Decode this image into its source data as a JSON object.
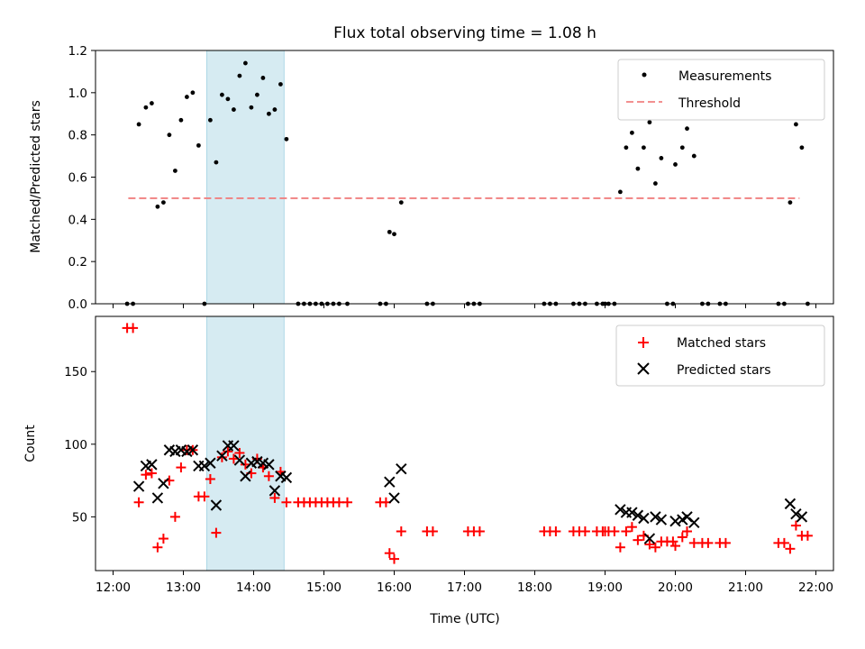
{
  "chart_data": [
    {
      "type": "scatter",
      "title": "Flux total observing time = 1.08 h",
      "xlabel": "",
      "ylabel": "Matched/Predicted stars",
      "xlim": [
        "11:45",
        "22:15"
      ],
      "ylim": [
        0,
        1.2
      ],
      "yticks": [
        "0.0",
        "0.2",
        "0.4",
        "0.6",
        "0.8",
        "1.0",
        "1.2"
      ],
      "highlight_span": [
        "13:20",
        "14:26"
      ],
      "legend": {
        "placement": "top-right",
        "entries": [
          "Measurements",
          "Threshold"
        ]
      },
      "colors": {
        "measurements": "#000000",
        "threshold": "#f08080",
        "span": "#add8e6"
      },
      "series": [
        {
          "name": "Measurements",
          "points": [
            [
              "12:12",
              0
            ],
            [
              "12:17",
              0
            ],
            [
              "12:22",
              0.85
            ],
            [
              "12:28",
              0.93
            ],
            [
              "12:33",
              0.95
            ],
            [
              "12:38",
              0.46
            ],
            [
              "12:43",
              0.48
            ],
            [
              "12:48",
              0.8
            ],
            [
              "12:53",
              0.63
            ],
            [
              "12:58",
              0.87
            ],
            [
              "13:03",
              0.98
            ],
            [
              "13:08",
              1.0
            ],
            [
              "13:13",
              0.75
            ],
            [
              "13:18",
              0
            ],
            [
              "13:23",
              0.87
            ],
            [
              "13:28",
              0.67
            ],
            [
              "13:33",
              0.99
            ],
            [
              "13:38",
              0.97
            ],
            [
              "13:43",
              0.92
            ],
            [
              "13:48",
              1.08
            ],
            [
              "13:53",
              1.14
            ],
            [
              "13:58",
              0.93
            ],
            [
              "14:03",
              0.99
            ],
            [
              "14:08",
              1.07
            ],
            [
              "14:13",
              0.9
            ],
            [
              "14:18",
              0.92
            ],
            [
              "14:23",
              1.04
            ],
            [
              "14:28",
              0.78
            ],
            [
              "14:38",
              0
            ],
            [
              "14:43",
              0
            ],
            [
              "14:48",
              0
            ],
            [
              "14:53",
              0
            ],
            [
              "14:58",
              0
            ],
            [
              "15:03",
              0
            ],
            [
              "15:08",
              0
            ],
            [
              "15:13",
              0
            ],
            [
              "15:20",
              0
            ],
            [
              "15:48",
              0
            ],
            [
              "15:53",
              0
            ],
            [
              "15:56",
              0.34
            ],
            [
              "16:00",
              0.33
            ],
            [
              "16:06",
              0.48
            ],
            [
              "16:28",
              0
            ],
            [
              "16:33",
              0
            ],
            [
              "17:03",
              0
            ],
            [
              "17:08",
              0
            ],
            [
              "17:13",
              0
            ],
            [
              "18:08",
              0
            ],
            [
              "18:13",
              0
            ],
            [
              "18:18",
              0
            ],
            [
              "18:33",
              0
            ],
            [
              "18:38",
              0
            ],
            [
              "18:43",
              0
            ],
            [
              "18:53",
              0
            ],
            [
              "18:58",
              0
            ],
            [
              "19:00",
              0
            ],
            [
              "19:03",
              0
            ],
            [
              "19:08",
              0
            ],
            [
              "19:13",
              0.53
            ],
            [
              "19:18",
              0.74
            ],
            [
              "19:23",
              0.81
            ],
            [
              "19:28",
              0.64
            ],
            [
              "19:33",
              0.74
            ],
            [
              "19:38",
              0.86
            ],
            [
              "19:43",
              0.57
            ],
            [
              "19:48",
              0.69
            ],
            [
              "19:53",
              0
            ],
            [
              "19:58",
              0
            ],
            [
              "20:00",
              0.66
            ],
            [
              "20:06",
              0.74
            ],
            [
              "20:10",
              0.83
            ],
            [
              "20:16",
              0.7
            ],
            [
              "20:23",
              0
            ],
            [
              "20:28",
              0
            ],
            [
              "20:38",
              0
            ],
            [
              "20:43",
              0
            ],
            [
              "21:28",
              0
            ],
            [
              "21:33",
              0
            ],
            [
              "21:38",
              0.48
            ],
            [
              "21:43",
              0.85
            ],
            [
              "21:48",
              0.74
            ],
            [
              "21:53",
              0
            ]
          ]
        },
        {
          "name": "Threshold",
          "line": [
            [
              "12:13",
              0.5
            ],
            [
              "21:46",
              0.5
            ]
          ]
        }
      ]
    },
    {
      "type": "scatter",
      "title": "",
      "xlabel": "Time (UTC)",
      "ylabel": "Count",
      "xlim": [
        "11:45",
        "22:15"
      ],
      "ylim": [
        13,
        188
      ],
      "yticks": [
        "50",
        "100",
        "150"
      ],
      "xticks": [
        "12:00",
        "13:00",
        "14:00",
        "15:00",
        "16:00",
        "17:00",
        "18:00",
        "19:00",
        "20:00",
        "21:00",
        "22:00"
      ],
      "highlight_span": [
        "13:20",
        "14:26"
      ],
      "legend": {
        "placement": "top-right",
        "entries": [
          "Matched stars",
          "Predicted stars"
        ]
      },
      "colors": {
        "matched": "#ff0000",
        "predicted": "#000000",
        "span": "#add8e6"
      },
      "series": [
        {
          "name": "Matched stars",
          "points": [
            [
              "12:12",
              180
            ],
            [
              "12:17",
              180
            ],
            [
              "12:22",
              60
            ],
            [
              "12:28",
              79
            ],
            [
              "12:33",
              80
            ],
            [
              "12:38",
              29
            ],
            [
              "12:43",
              35
            ],
            [
              "12:48",
              75
            ],
            [
              "12:53",
              50
            ],
            [
              "12:58",
              84
            ],
            [
              "13:03",
              96
            ],
            [
              "13:08",
              96
            ],
            [
              "13:13",
              64
            ],
            [
              "13:18",
              64
            ],
            [
              "13:23",
              76
            ],
            [
              "13:28",
              39
            ],
            [
              "13:33",
              91
            ],
            [
              "13:38",
              95
            ],
            [
              "13:43",
              90
            ],
            [
              "13:48",
              94
            ],
            [
              "13:53",
              86
            ],
            [
              "13:58",
              80
            ],
            [
              "14:03",
              90
            ],
            [
              "14:08",
              84
            ],
            [
              "14:13",
              78
            ],
            [
              "14:18",
              63
            ],
            [
              "14:23",
              81
            ],
            [
              "14:28",
              60
            ],
            [
              "14:38",
              60
            ],
            [
              "14:43",
              60
            ],
            [
              "14:48",
              60
            ],
            [
              "14:53",
              60
            ],
            [
              "14:58",
              60
            ],
            [
              "15:03",
              60
            ],
            [
              "15:08",
              60
            ],
            [
              "15:13",
              60
            ],
            [
              "15:20",
              60
            ],
            [
              "15:48",
              60
            ],
            [
              "15:53",
              60
            ],
            [
              "15:56",
              25
            ],
            [
              "16:00",
              21
            ],
            [
              "16:06",
              40
            ],
            [
              "16:28",
              40
            ],
            [
              "16:33",
              40
            ],
            [
              "17:03",
              40
            ],
            [
              "17:08",
              40
            ],
            [
              "17:13",
              40
            ],
            [
              "18:08",
              40
            ],
            [
              "18:13",
              40
            ],
            [
              "18:18",
              40
            ],
            [
              "18:33",
              40
            ],
            [
              "18:38",
              40
            ],
            [
              "18:43",
              40
            ],
            [
              "18:53",
              40
            ],
            [
              "18:58",
              40
            ],
            [
              "19:00",
              40
            ],
            [
              "19:03",
              40
            ],
            [
              "19:08",
              40
            ],
            [
              "19:13",
              29
            ],
            [
              "19:18",
              40
            ],
            [
              "19:23",
              43
            ],
            [
              "19:28",
              34
            ],
            [
              "19:33",
              37
            ],
            [
              "19:38",
              31
            ],
            [
              "19:43",
              29
            ],
            [
              "19:48",
              33
            ],
            [
              "19:53",
              33
            ],
            [
              "19:58",
              33
            ],
            [
              "20:00",
              30
            ],
            [
              "20:06",
              36
            ],
            [
              "20:10",
              40
            ],
            [
              "20:16",
              32
            ],
            [
              "20:23",
              32
            ],
            [
              "20:28",
              32
            ],
            [
              "20:38",
              32
            ],
            [
              "20:43",
              32
            ],
            [
              "21:28",
              32
            ],
            [
              "21:33",
              32
            ],
            [
              "21:38",
              28
            ],
            [
              "21:43",
              44
            ],
            [
              "21:48",
              37
            ],
            [
              "21:53",
              37
            ]
          ]
        },
        {
          "name": "Predicted stars",
          "points": [
            [
              "12:22",
              71
            ],
            [
              "12:28",
              85
            ],
            [
              "12:33",
              86
            ],
            [
              "12:38",
              63
            ],
            [
              "12:43",
              73
            ],
            [
              "12:48",
              96
            ],
            [
              "12:53",
              95
            ],
            [
              "12:58",
              96
            ],
            [
              "13:03",
              95
            ],
            [
              "13:08",
              96
            ],
            [
              "13:13",
              85
            ],
            [
              "13:18",
              85
            ],
            [
              "13:23",
              87
            ],
            [
              "13:28",
              58
            ],
            [
              "13:33",
              92
            ],
            [
              "13:38",
              99
            ],
            [
              "13:43",
              99
            ],
            [
              "13:48",
              89
            ],
            [
              "13:53",
              78
            ],
            [
              "13:58",
              87
            ],
            [
              "14:03",
              88
            ],
            [
              "14:08",
              87
            ],
            [
              "14:13",
              86
            ],
            [
              "14:18",
              68
            ],
            [
              "14:23",
              78
            ],
            [
              "14:28",
              77
            ],
            [
              "15:56",
              74
            ],
            [
              "16:00",
              63
            ],
            [
              "16:06",
              83
            ],
            [
              "19:13",
              55
            ],
            [
              "19:18",
              53
            ],
            [
              "19:23",
              53
            ],
            [
              "19:28",
              51
            ],
            [
              "19:33",
              49
            ],
            [
              "19:38",
              35
            ],
            [
              "19:43",
              50
            ],
            [
              "19:48",
              48
            ],
            [
              "20:00",
              47
            ],
            [
              "20:06",
              48
            ],
            [
              "20:10",
              50
            ],
            [
              "20:16",
              46
            ],
            [
              "21:38",
              59
            ],
            [
              "21:43",
              52
            ],
            [
              "21:48",
              50
            ]
          ]
        }
      ]
    }
  ]
}
